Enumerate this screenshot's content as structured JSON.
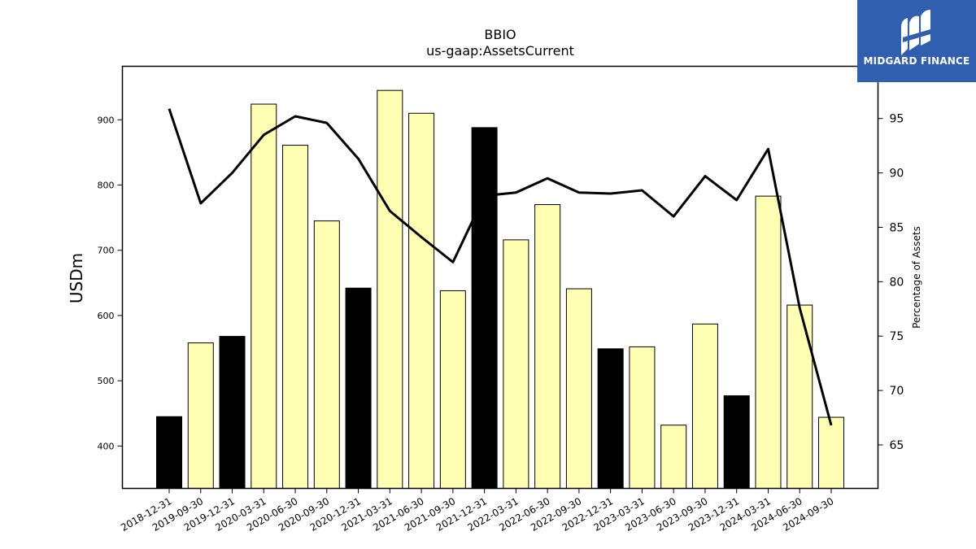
{
  "chart_data": {
    "type": "bar",
    "title": "BBIO",
    "subtitle": "us-gaap:AssetsCurrent",
    "ylabel": "USDm",
    "y2label": "Percentage of Assets",
    "ylim": [
      335,
      982
    ],
    "y2lim": [
      61,
      99.8
    ],
    "yticks": [
      400,
      500,
      600,
      700,
      800,
      900
    ],
    "y2ticks": [
      65,
      70,
      75,
      80,
      85,
      90,
      95
    ],
    "categories": [
      "2018-12-31",
      "2019-09-30",
      "2019-12-31",
      "2020-03-31",
      "2020-06-30",
      "2020-09-30",
      "2020-12-31",
      "2021-03-31",
      "2021-06-30",
      "2021-09-30",
      "2021-12-31",
      "2022-03-31",
      "2022-06-30",
      "2022-09-30",
      "2022-12-31",
      "2023-03-31",
      "2023-06-30",
      "2023-09-30",
      "2023-12-31",
      "2024-03-31",
      "2024-06-30",
      "2024-09-30"
    ],
    "series": [
      {
        "type": "bar",
        "axis": "left",
        "values": [
          445,
          558,
          568,
          924,
          861,
          745,
          642,
          945,
          910,
          638,
          888,
          716,
          770,
          641,
          549,
          552,
          432,
          587,
          477,
          783,
          616,
          444
        ],
        "highlight": [
          true,
          false,
          true,
          false,
          false,
          false,
          true,
          false,
          false,
          false,
          true,
          false,
          false,
          false,
          true,
          false,
          false,
          false,
          true,
          false,
          false,
          false
        ]
      },
      {
        "type": "line",
        "axis": "right",
        "values": [
          95.9,
          87.2,
          90.0,
          93.5,
          95.2,
          94.6,
          91.3,
          86.5,
          84.1,
          81.8,
          87.9,
          88.2,
          89.5,
          88.2,
          88.1,
          88.4,
          86.0,
          89.7,
          87.5,
          92.2,
          77.6,
          66.8
        ]
      }
    ],
    "colors": {
      "bar_fill": "#ffffb3",
      "bar_highlight": "#000000",
      "bar_edge": "#000000",
      "line": "#000000"
    },
    "grid": false,
    "legend": "none"
  },
  "logo": {
    "text": "MIDGARD FINANCE",
    "background": "#2f5fae"
  }
}
